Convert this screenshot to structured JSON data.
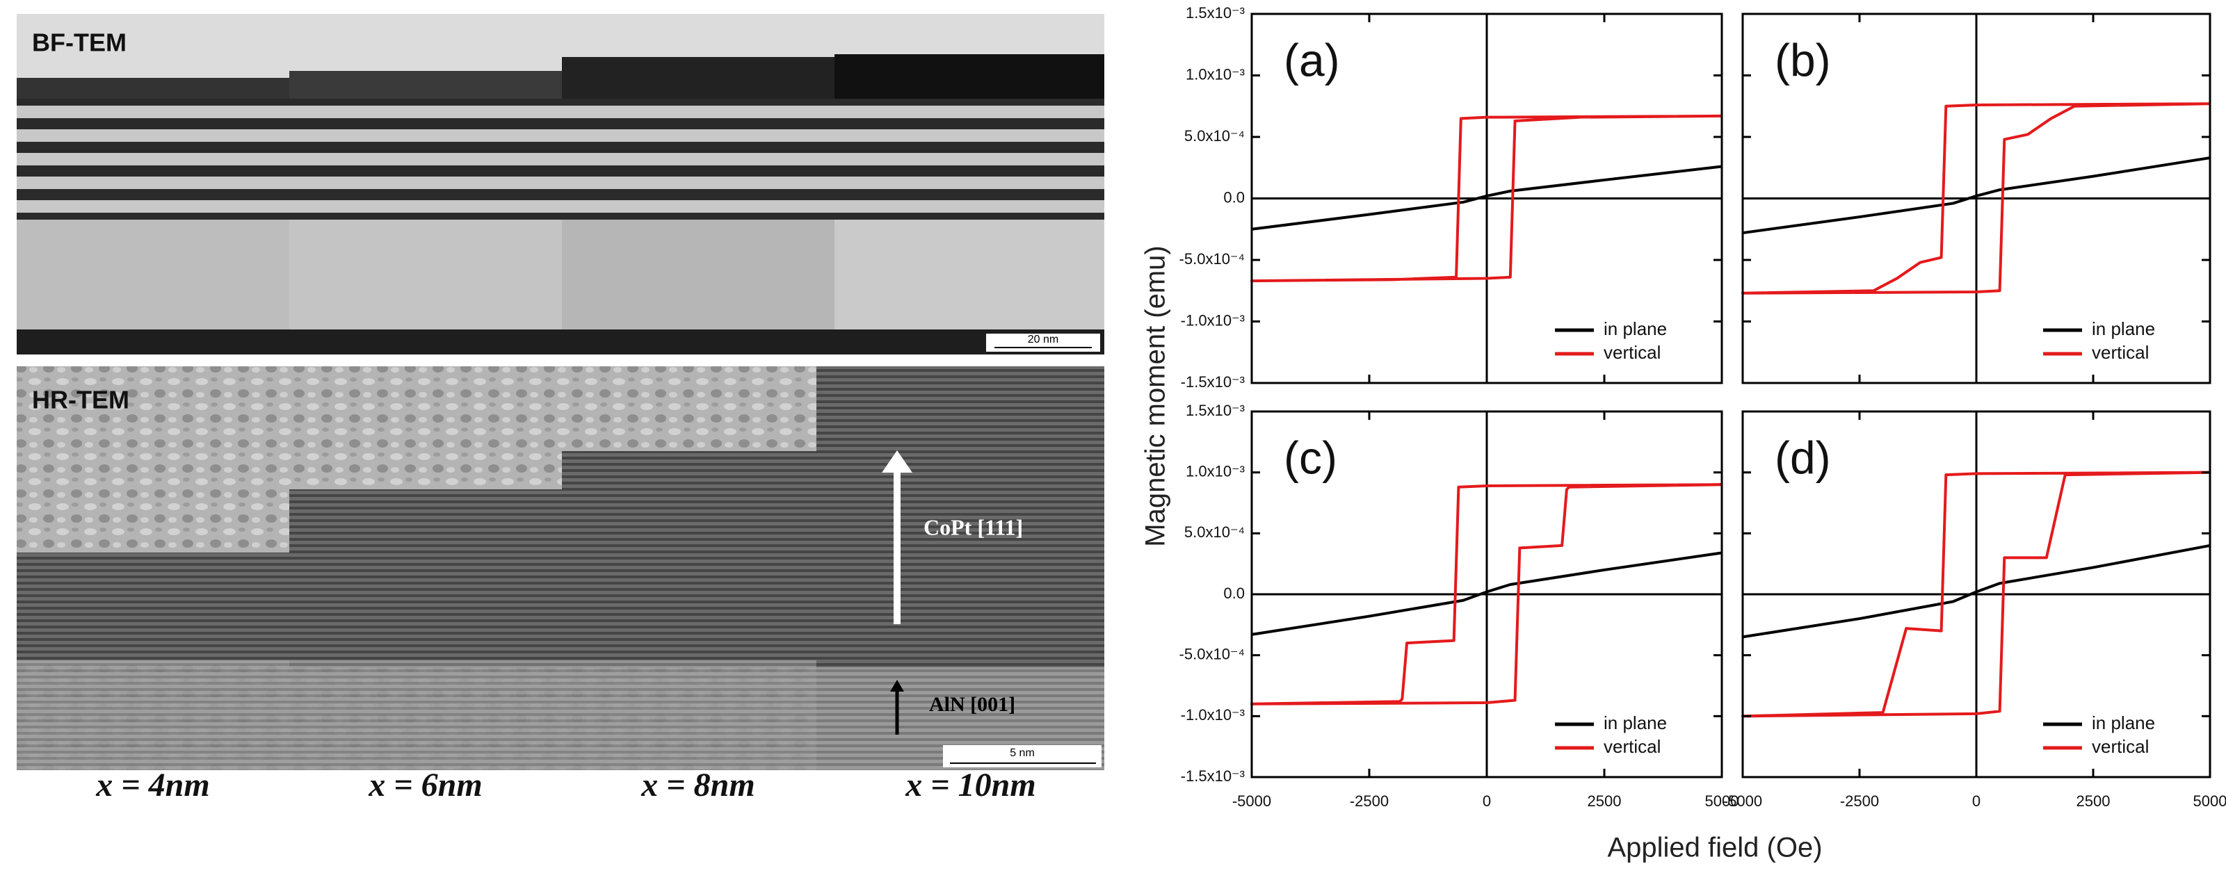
{
  "tem": {
    "bf_label": "BF-TEM",
    "hr_label": "HR-TEM",
    "bf_scale": "20 nm",
    "hr_scale": "5 nm",
    "copt_label": "CoPt [111]",
    "aln_label": "AlN [001]",
    "samples": [
      "x = 4nm",
      "x = 6nm",
      "x = 8nm",
      "x = 10nm"
    ]
  },
  "figure": {
    "xlabel": "Applied field (Oe)",
    "ylabel": "Magnetic moment (emu)",
    "xlim": [
      -5000,
      5000
    ],
    "xticks": [
      -5000,
      -2500,
      0,
      2500,
      5000
    ],
    "ylim": [
      -0.0015,
      0.0015
    ],
    "yticks": [
      {
        "value": 0.0015,
        "label": "1.5x10⁻³"
      },
      {
        "value": 0.001,
        "label": "1.0x10⁻³"
      },
      {
        "value": 0.0005,
        "label": "5.0x10⁻⁴"
      },
      {
        "value": 0,
        "label": "0.0"
      },
      {
        "value": -0.0005,
        "label": "-5.0x10⁻⁴"
      },
      {
        "value": -0.001,
        "label": "-1.0x10⁻³"
      },
      {
        "value": -0.0015,
        "label": "-1.5x10⁻³"
      }
    ]
  },
  "chart_data": [
    {
      "type": "line",
      "label": "(a)",
      "series": [
        {
          "name": "in plane",
          "color": "#000000",
          "x": [
            -5000,
            -2500,
            -500,
            0,
            500,
            2500,
            5000
          ],
          "values": [
            -0.00025,
            -0.00013,
            -3e-05,
            2e-05,
            6e-05,
            0.00015,
            0.00026
          ]
        },
        {
          "name": "vertical",
          "color": "#e41a1c",
          "x": [
            5000,
            0,
            -550,
            -650,
            -2000,
            -5000,
            -5000,
            0,
            500,
            600,
            2000,
            5000
          ],
          "values": [
            0.00067,
            0.00066,
            0.00065,
            -0.00064,
            -0.00066,
            -0.00067,
            -0.00067,
            -0.00065,
            -0.00064,
            0.00063,
            0.00066,
            0.00067
          ]
        }
      ]
    },
    {
      "type": "line",
      "label": "(b)",
      "series": [
        {
          "name": "in plane",
          "color": "#000000",
          "x": [
            -5000,
            -2500,
            -500,
            0,
            500,
            2500,
            5000
          ],
          "values": [
            -0.00028,
            -0.00015,
            -4e-05,
            2e-05,
            7e-05,
            0.00018,
            0.00033
          ]
        },
        {
          "name": "vertical",
          "color": "#e41a1c",
          "x": [
            5000,
            0,
            -650,
            -750,
            -1200,
            -1700,
            -2200,
            -5000,
            -5000,
            0,
            500,
            600,
            1100,
            1600,
            2100,
            5000
          ],
          "values": [
            0.00077,
            0.00076,
            0.00075,
            -0.00048,
            -0.00052,
            -0.00065,
            -0.00075,
            -0.00077,
            -0.00077,
            -0.00076,
            -0.00075,
            0.00048,
            0.00052,
            0.00065,
            0.00075,
            0.00077
          ]
        }
      ]
    },
    {
      "type": "line",
      "label": "(c)",
      "series": [
        {
          "name": "in plane",
          "color": "#000000",
          "x": [
            -5000,
            -2500,
            -500,
            0,
            500,
            2500,
            5000
          ],
          "values": [
            -0.00033,
            -0.00018,
            -5e-05,
            2e-05,
            8e-05,
            0.0002,
            0.00034
          ]
        },
        {
          "name": "vertical",
          "color": "#e41a1c",
          "x": [
            5000,
            0,
            -600,
            -700,
            -1700,
            -1800,
            -1850,
            -5000,
            -5000,
            0,
            600,
            700,
            1600,
            1700,
            1750,
            5000
          ],
          "values": [
            0.0009,
            0.00089,
            0.00088,
            -0.00038,
            -0.0004,
            -0.00086,
            -0.00088,
            -0.0009,
            -0.0009,
            -0.00089,
            -0.00087,
            0.00038,
            0.0004,
            0.00086,
            0.00088,
            0.0009
          ]
        }
      ]
    },
    {
      "type": "line",
      "label": "(d)",
      "series": [
        {
          "name": "in plane",
          "color": "#000000",
          "x": [
            -5000,
            -2500,
            -500,
            0,
            500,
            2500,
            5000
          ],
          "values": [
            -0.00035,
            -0.0002,
            -6e-05,
            2e-05,
            9e-05,
            0.00022,
            0.0004
          ]
        },
        {
          "name": "vertical",
          "color": "#e41a1c",
          "x": [
            5000,
            0,
            -650,
            -750,
            -1500,
            -2000,
            -5000,
            -5000,
            0,
            500,
            600,
            1500,
            1900,
            5000
          ],
          "values": [
            0.001,
            0.00099,
            0.00098,
            -0.0003,
            -0.00028,
            -0.00097,
            -0.001,
            -0.001,
            -0.00098,
            -0.00096,
            0.0003,
            0.0003,
            0.00098,
            0.001
          ]
        }
      ]
    }
  ]
}
